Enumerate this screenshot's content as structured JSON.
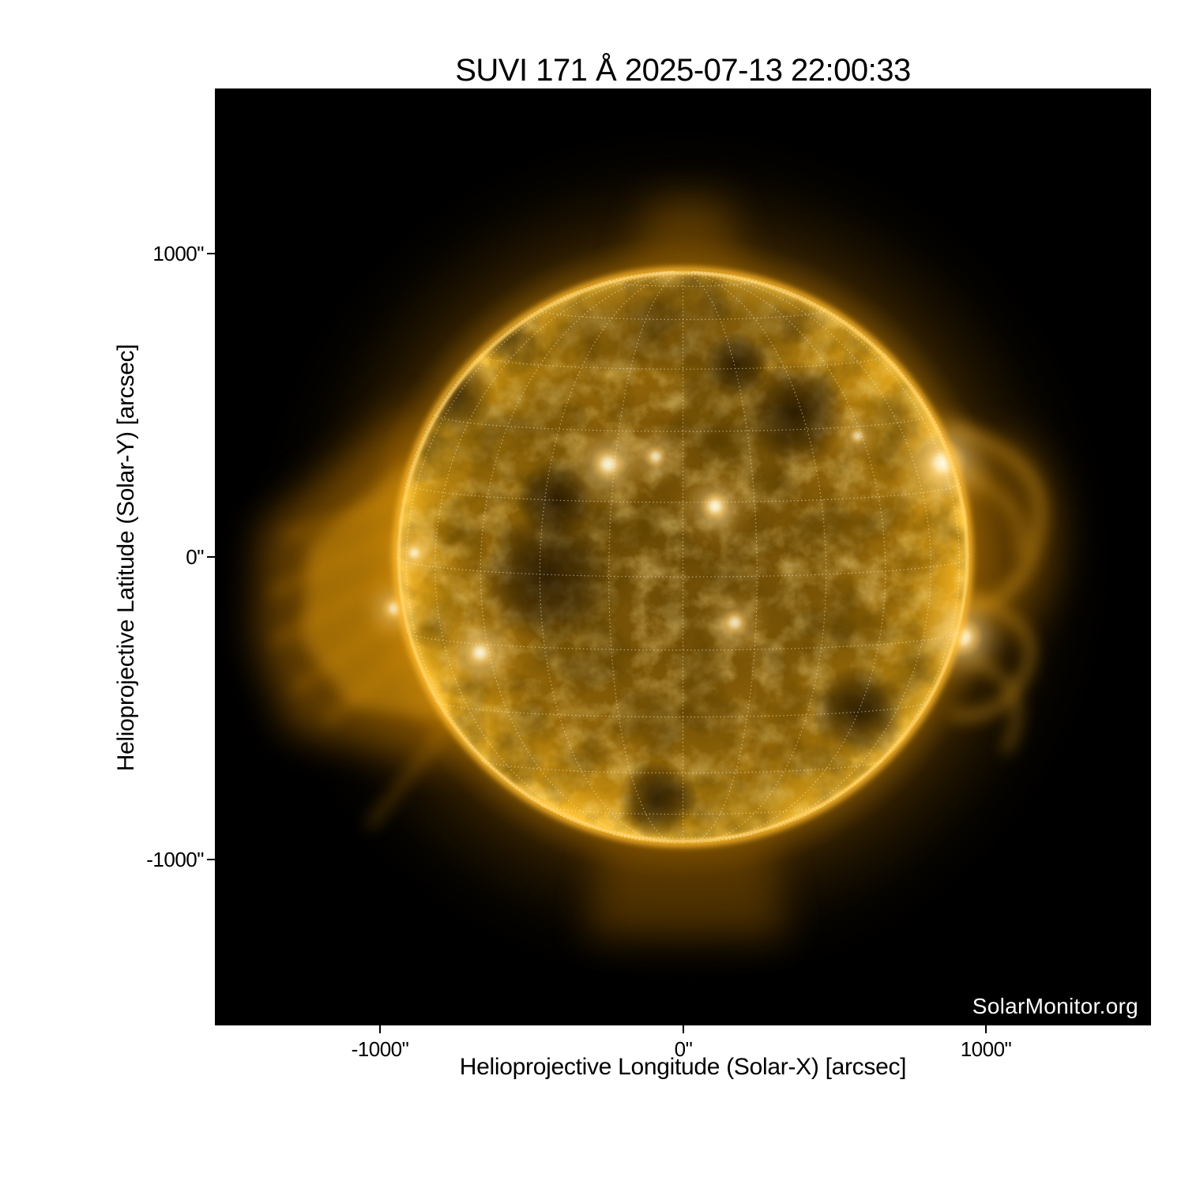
{
  "figure": {
    "title": "SUVI 171 Å 2025-07-13 22:00:33",
    "watermark": "SolarMonitor.org",
    "x_axis": {
      "label": "Helioprojective Longitude (Solar-X) [arcsec]",
      "ticks": [
        "-1000\"",
        "0\"",
        "1000\""
      ]
    },
    "y_axis": {
      "label": "Helioprojective Latitude (Solar-Y) [arcsec]",
      "ticks": [
        "1000\"",
        "0\"",
        "-1000\""
      ]
    }
  },
  "chart_data": {
    "type": "heatmap",
    "title": "SUVI 171 Å 2025-07-13 22:00:33",
    "xlabel": "Helioprojective Longitude (Solar-X) [arcsec]",
    "ylabel": "Helioprojective Latitude (Solar-Y) [arcsec]",
    "xlim": [
      -1545,
      1545
    ],
    "ylim": [
      -1546,
      1546
    ],
    "xticks": [
      -1000,
      0,
      1000
    ],
    "yticks": [
      -1000,
      0,
      1000
    ],
    "grid": "heliographic graticule, dotted, 15 degree spacing",
    "background_color": "#000000",
    "colormap": {
      "name": "gold EUV",
      "dark": "#2a1b00",
      "mid": "#9a6a08",
      "bright": "#e8a818",
      "limb": "#ffc93e",
      "hot": "#fffbe8"
    },
    "solar_disk": {
      "center_arcsec": [
        0,
        0
      ],
      "radius_arcsec": 945,
      "grid_spacing_deg": 15,
      "b0_tilt_deg": 4
    },
    "active_regions_arcsec": [
      {
        "x": -247,
        "y": 306,
        "size": 60,
        "brightness": 0.92
      },
      {
        "x": -90,
        "y": 331,
        "size": 40,
        "brightness": 0.75
      },
      {
        "x": 106,
        "y": 167,
        "size": 52,
        "brightness": 0.95
      },
      {
        "x": 858,
        "y": 311,
        "size": 80,
        "brightness": 1.0
      },
      {
        "x": 923,
        "y": -264,
        "size": 68,
        "brightness": 1.0
      },
      {
        "x": -670,
        "y": -316,
        "size": 55,
        "brightness": 0.9
      },
      {
        "x": -887,
        "y": 13,
        "size": 40,
        "brightness": 0.8
      },
      {
        "x": -952,
        "y": -170,
        "size": 45,
        "brightness": 0.8
      },
      {
        "x": 171,
        "y": -217,
        "size": 45,
        "brightness": 0.8
      },
      {
        "x": 576,
        "y": 399,
        "size": 32,
        "brightness": 0.7
      }
    ]
  }
}
